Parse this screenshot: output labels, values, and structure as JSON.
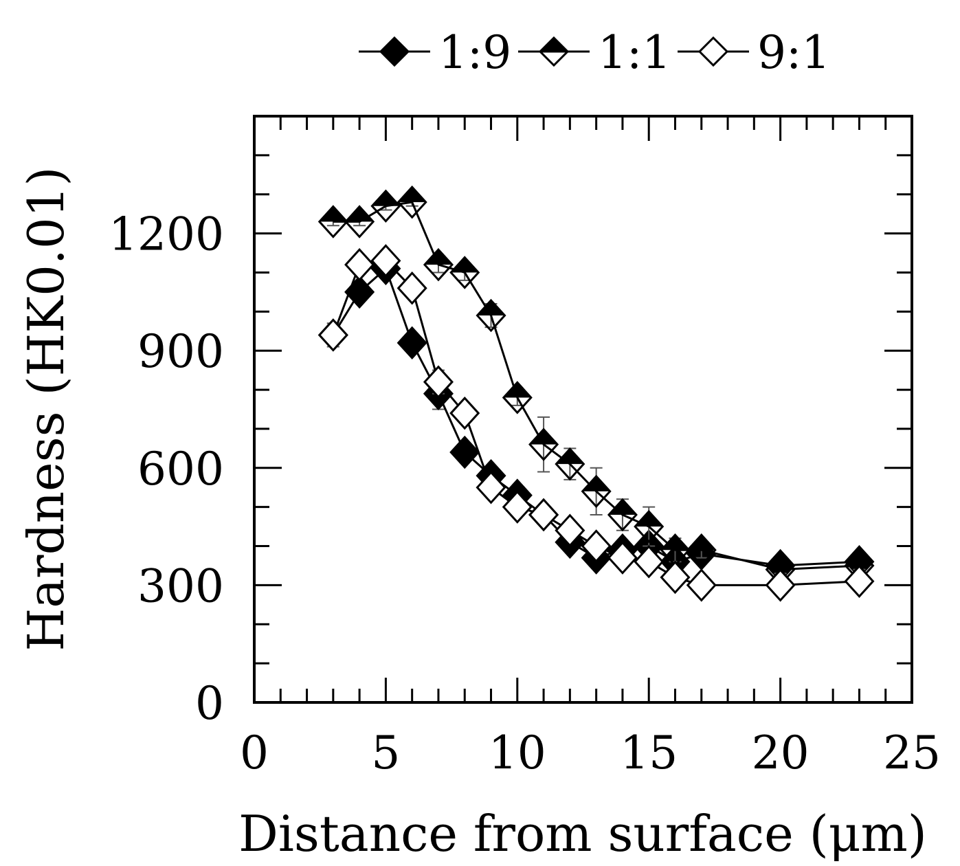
{
  "chart_data": {
    "type": "line",
    "title": "",
    "xlabel": "Distance from surface (μm)",
    "ylabel": "Hardness (HK0.01)",
    "xlim": [
      0,
      25
    ],
    "ylim": [
      0,
      1500
    ],
    "xticks": [
      0,
      5,
      10,
      15,
      20,
      25
    ],
    "yticks": [
      0,
      300,
      600,
      900,
      1200
    ],
    "legend_position": "top",
    "series": [
      {
        "name": "1:9",
        "marker": "diamond-filled",
        "x": [
          3,
          4,
          5,
          6,
          7,
          8,
          9,
          10,
          11,
          12,
          13,
          14,
          15,
          16,
          17,
          20,
          23
        ],
        "y": [
          940,
          1050,
          1110,
          920,
          790,
          640,
          580,
          530,
          480,
          410,
          370,
          390,
          400,
          360,
          380,
          350,
          360
        ],
        "err": [
          30,
          20,
          20,
          20,
          40,
          20,
          20,
          20,
          20,
          20,
          20,
          20,
          20,
          20,
          20,
          10,
          10
        ]
      },
      {
        "name": "1:1",
        "marker": "diamond-half",
        "x": [
          3,
          4,
          5,
          6,
          7,
          8,
          9,
          10,
          11,
          12,
          13,
          14,
          15,
          16,
          17,
          20,
          23
        ],
        "y": [
          1230,
          1230,
          1270,
          1280,
          1120,
          1100,
          990,
          780,
          660,
          610,
          540,
          480,
          450,
          390,
          390,
          340,
          350
        ],
        "err": [
          10,
          10,
          10,
          10,
          20,
          20,
          30,
          20,
          70,
          40,
          60,
          40,
          50,
          30,
          20,
          10,
          10
        ]
      },
      {
        "name": "9:1",
        "marker": "diamond-open",
        "x": [
          3,
          4,
          5,
          6,
          7,
          8,
          9,
          10,
          11,
          12,
          13,
          14,
          15,
          16,
          17,
          20,
          23
        ],
        "y": [
          940,
          1120,
          1130,
          1060,
          820,
          740,
          550,
          500,
          480,
          440,
          400,
          370,
          360,
          320,
          300,
          300,
          310
        ],
        "err": [
          30,
          20,
          20,
          20,
          30,
          20,
          20,
          20,
          20,
          20,
          20,
          20,
          20,
          20,
          10,
          10,
          10
        ]
      }
    ]
  }
}
